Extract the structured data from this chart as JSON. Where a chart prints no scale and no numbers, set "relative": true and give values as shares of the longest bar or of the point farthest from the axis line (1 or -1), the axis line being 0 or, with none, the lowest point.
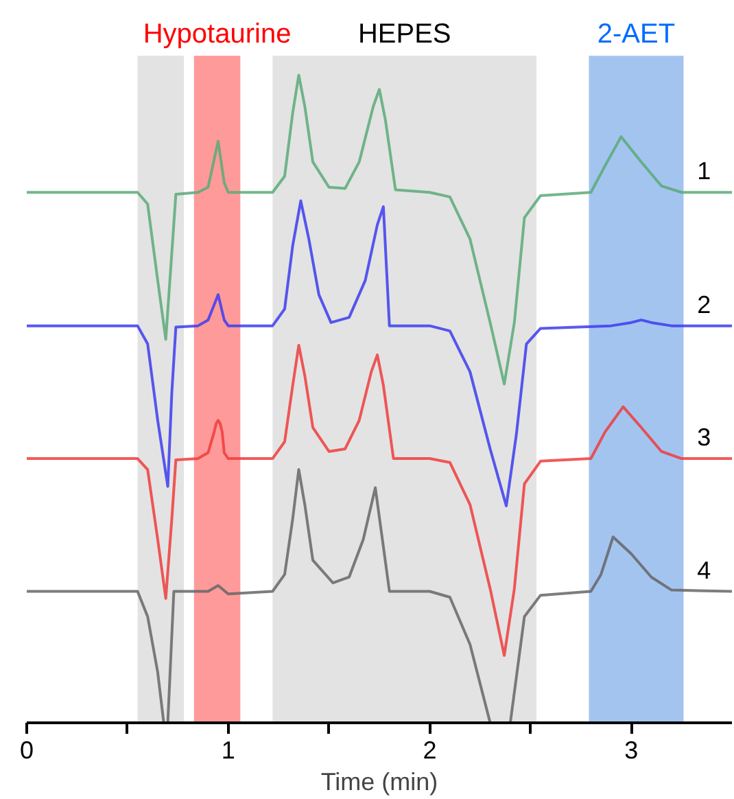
{
  "chart_data": {
    "type": "line",
    "relative": true,
    "xlabel": "Time (min)",
    "xlim": [
      0,
      3.5
    ],
    "xticks": [
      0,
      {
        "value": 0.5,
        "label": null
      },
      1,
      {
        "value": 1.5,
        "label": null
      },
      2,
      {
        "value": 2.5,
        "label": null
      },
      3
    ],
    "bands": [
      {
        "axis": "x",
        "from": 0.55,
        "to": 0.78,
        "color": "#e3e3e3"
      },
      {
        "axis": "x",
        "from": 0.83,
        "to": 1.06,
        "color": "#ff9a9a",
        "label": "Hypotaurine"
      },
      {
        "axis": "x",
        "from": 1.22,
        "to": 2.53,
        "color": "#e3e3e3",
        "label": "HEPES"
      },
      {
        "axis": "x",
        "from": 2.79,
        "to": 3.26,
        "color": "#a4c4f0",
        "label": "2-AET"
      }
    ],
    "series": [
      {
        "name": "1",
        "color": "#5aaa78",
        "x": [
          0,
          0.55,
          0.6,
          0.65,
          0.69,
          0.72,
          0.74,
          0.85,
          0.9,
          0.95,
          0.98,
          1.0,
          1.22,
          1.28,
          1.32,
          1.35,
          1.38,
          1.42,
          1.5,
          1.58,
          1.65,
          1.72,
          1.75,
          1.78,
          1.83,
          2.0,
          2.1,
          2.2,
          2.3,
          2.37,
          2.42,
          2.47,
          2.55,
          2.8,
          2.87,
          2.95,
          3.05,
          3.15,
          3.25,
          3.5
        ],
        "values": [
          0.819,
          0.819,
          0.801,
          0.683,
          0.592,
          0.726,
          0.816,
          0.819,
          0.827,
          0.898,
          0.834,
          0.819,
          0.819,
          0.844,
          0.942,
          1.0,
          0.952,
          0.866,
          0.827,
          0.825,
          0.866,
          0.952,
          0.978,
          0.931,
          0.823,
          0.819,
          0.812,
          0.747,
          0.618,
          0.523,
          0.618,
          0.78,
          0.814,
          0.819,
          0.86,
          0.905,
          0.866,
          0.829,
          0.819,
          0.819
        ]
      },
      {
        "name": "2",
        "color": "#3c3cf0",
        "x": [
          0,
          0.55,
          0.6,
          0.65,
          0.7,
          0.72,
          0.74,
          0.85,
          0.9,
          0.95,
          0.98,
          1.0,
          1.22,
          1.28,
          1.32,
          1.36,
          1.4,
          1.45,
          1.51,
          1.6,
          1.68,
          1.74,
          1.77,
          1.8,
          2.0,
          2.1,
          2.2,
          2.3,
          2.38,
          2.43,
          2.48,
          2.55,
          2.9,
          3.0,
          3.05,
          3.1,
          3.2,
          3.5
        ],
        "values": [
          0.613,
          0.613,
          0.585,
          0.467,
          0.365,
          0.51,
          0.611,
          0.613,
          0.622,
          0.661,
          0.622,
          0.613,
          0.613,
          0.639,
          0.737,
          0.806,
          0.747,
          0.661,
          0.618,
          0.626,
          0.683,
          0.769,
          0.797,
          0.613,
          0.613,
          0.605,
          0.542,
          0.423,
          0.335,
          0.445,
          0.585,
          0.609,
          0.613,
          0.618,
          0.622,
          0.618,
          0.613,
          0.613
        ]
      },
      {
        "name": "3",
        "color": "#f03c3c",
        "x": [
          0,
          0.55,
          0.6,
          0.65,
          0.69,
          0.72,
          0.74,
          0.85,
          0.9,
          0.93,
          0.94,
          0.95,
          0.96,
          0.97,
          0.98,
          1.0,
          1.22,
          1.28,
          1.32,
          1.35,
          1.38,
          1.42,
          1.5,
          1.58,
          1.65,
          1.71,
          1.74,
          1.77,
          1.82,
          2.0,
          2.1,
          2.2,
          2.3,
          2.37,
          2.42,
          2.47,
          2.55,
          2.8,
          2.87,
          2.96,
          3.05,
          3.15,
          3.25,
          3.5
        ],
        "values": [
          0.408,
          0.408,
          0.391,
          0.283,
          0.192,
          0.315,
          0.406,
          0.408,
          0.417,
          0.449,
          0.462,
          0.467,
          0.462,
          0.449,
          0.417,
          0.408,
          0.408,
          0.434,
          0.521,
          0.583,
          0.536,
          0.456,
          0.419,
          0.423,
          0.467,
          0.542,
          0.568,
          0.521,
          0.408,
          0.408,
          0.402,
          0.337,
          0.207,
          0.104,
          0.207,
          0.369,
          0.404,
          0.408,
          0.449,
          0.488,
          0.456,
          0.419,
          0.408,
          0.408
        ]
      },
      {
        "name": "4",
        "color": "#666666",
        "x": [
          0,
          0.55,
          0.6,
          0.65,
          0.68,
          0.69,
          0.7,
          0.73,
          0.9,
          0.95,
          1.0,
          1.22,
          1.28,
          1.32,
          1.35,
          1.38,
          1.42,
          1.52,
          1.6,
          1.67,
          1.73,
          1.77,
          1.8,
          2.0,
          2.1,
          2.2,
          2.3,
          2.35,
          2.4,
          2.47,
          2.55,
          2.8,
          2.85,
          2.91,
          3.0,
          3.1,
          3.2,
          3.5
        ],
        "values": [
          0.203,
          0.203,
          0.164,
          0.078,
          0,
          null,
          0,
          0.203,
          0.203,
          0.212,
          0.199,
          0.203,
          0.229,
          0.315,
          0.391,
          0.337,
          0.251,
          0.216,
          0.225,
          0.283,
          0.363,
          0.272,
          0.203,
          0.203,
          0.194,
          0.121,
          0,
          null,
          0,
          0.164,
          0.197,
          0.203,
          0.229,
          0.287,
          0.261,
          0.225,
          0.205,
          0.203
        ]
      }
    ]
  }
}
